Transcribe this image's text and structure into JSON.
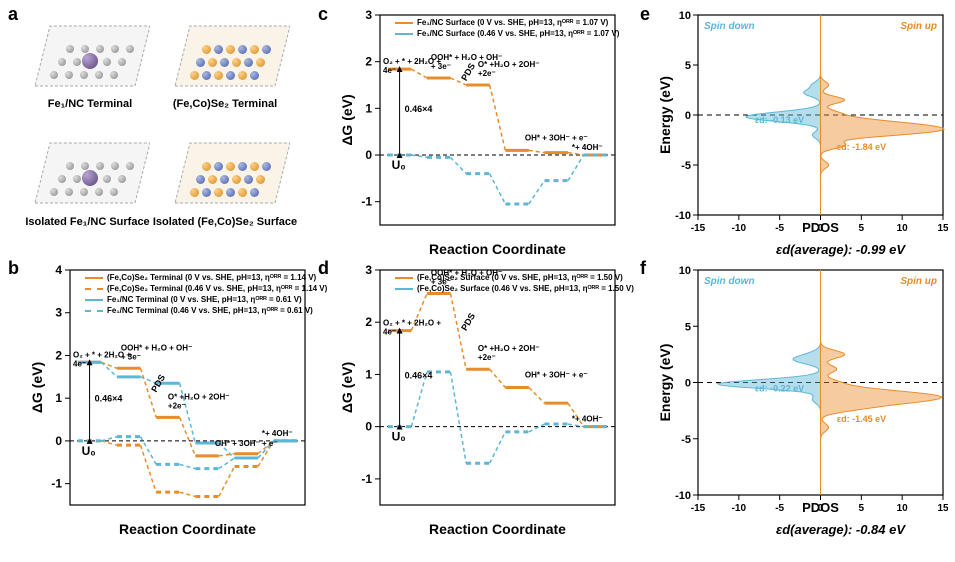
{
  "panel_a": {
    "label": "a",
    "structures": [
      {
        "name": "Fe₁/NC Terminal",
        "label": "Fe₁/NC Terminal"
      },
      {
        "name": "(Fe,Co)Se₂ Terminal",
        "label": "(Fe,Co)Se₂ Terminal"
      },
      {
        "name": "Isolated Fe₁/NC Surface",
        "label": "Isolated Fe₁/NC Surface"
      },
      {
        "name": "Isolated (Fe,Co)Se₂ Surface",
        "label": "Isolated (Fe,Co)Se₂ Surface"
      }
    ]
  },
  "panel_b": {
    "label": "b",
    "type": "free-energy-diagram",
    "x_label": "Reaction Coordinate",
    "y_label": "ΔG (eV)",
    "ylim": [
      -1.5,
      4
    ],
    "yticks": [
      -1,
      0,
      1,
      2,
      3,
      4
    ],
    "legend": [
      {
        "text": "(Fe,Co)Se₂ Terminal (0 V vs. SHE, pH=13, ηᴼᴿᴿ = 1.14 V)",
        "color": "#e88c2a",
        "dash": false
      },
      {
        "text": "(Fe,Co)Se₂ Terminal (0.46 V vs. SHE, pH=13, ηᴼᴿᴿ = 1.14 V)",
        "color": "#e88c2a",
        "dash": true
      },
      {
        "text": "Fe₁/NC Terminal (0 V vs. SHE, pH=13, ηᴼᴿᴿ = 0.61 V)",
        "color": "#5cb6d6",
        "dash": false
      },
      {
        "text": "Fe₁/NC Terminal (0.46 V vs. SHE, pH=13, ηᴼᴿᴿ = 0.61 V)",
        "color": "#5cb6d6",
        "dash": true
      }
    ],
    "series": {
      "orange_solid": {
        "color": "#e88c2a",
        "dash": false,
        "vals": [
          1.84,
          1.7,
          0.55,
          -0.35,
          -0.3,
          0.0
        ]
      },
      "orange_dash": {
        "color": "#e88c2a",
        "dash": true,
        "vals": [
          0.0,
          -0.1,
          -1.2,
          -1.3,
          -0.6,
          0.0
        ]
      },
      "blue_solid": {
        "color": "#5cb6d6",
        "dash": false,
        "vals": [
          1.84,
          1.5,
          1.35,
          -0.05,
          -0.4,
          0.0
        ]
      },
      "blue_dash": {
        "color": "#5cb6d6",
        "dash": true,
        "vals": [
          0.0,
          0.1,
          -0.55,
          -0.65,
          -0.4,
          0.0
        ]
      }
    },
    "step_labels": [
      "O₂ + * + 2H₂O + 4e⁻",
      "OOH* + H₂O + OH⁻ + 3e⁻",
      "O* +H₂O + 2OH⁻ +2e⁻",
      "OH* + 3OH⁻ + e⁻",
      "*+ 4OH⁻"
    ],
    "annotations": {
      "U0": "U₀",
      "arrow": "0.46×4",
      "pds": "PDS"
    }
  },
  "panel_c": {
    "label": "c",
    "type": "free-energy-diagram",
    "x_label": "Reaction Coordinate",
    "y_label": "ΔG (eV)",
    "ylim": [
      -1.5,
      3
    ],
    "yticks": [
      -1,
      0,
      1,
      2,
      3
    ],
    "legend": [
      {
        "text": "Fe₁/NC Surface (0 V vs. SHE, pH=13, ηᴼᴿᴿ = 1.07 V)",
        "color": "#e88c2a",
        "dash": false
      },
      {
        "text": "Fe₁/NC Surface (0.46 V vs. SHE, pH=13, ηᴼᴿᴿ = 1.07 V)",
        "color": "#5cb6d6",
        "dash": false
      }
    ],
    "series": {
      "orange_solid": {
        "color": "#e88c2a",
        "dash": false,
        "vals": [
          1.84,
          1.65,
          1.5,
          0.1,
          0.05,
          0.0
        ]
      },
      "blue_solid": {
        "color": "#5cb6d6",
        "dash": true,
        "vals": [
          0.0,
          -0.05,
          -0.4,
          -1.05,
          -0.55,
          0.0
        ]
      }
    },
    "step_labels": [
      "O₂ + * + 2H₂O + 4e⁻",
      "OOH* + H₂O + OH⁻ + 3e⁻",
      "O* +H₂O + 2OH⁻ +2e⁻",
      "OH* + 3OH⁻ + e⁻",
      "*+ 4OH⁻"
    ],
    "annotations": {
      "U0": "U₀",
      "arrow": "0.46×4",
      "pds": "PDS"
    }
  },
  "panel_d": {
    "label": "d",
    "type": "free-energy-diagram",
    "x_label": "Reaction Coordinate",
    "y_label": "ΔG (eV)",
    "ylim": [
      -1.5,
      3
    ],
    "yticks": [
      -1,
      0,
      1,
      2,
      3
    ],
    "legend": [
      {
        "text": "(Fe,Co)Se₂ Surface (0 V vs. SHE, pH=13, ηᴼᴿᴿ = 1.50 V)",
        "color": "#e88c2a",
        "dash": false
      },
      {
        "text": "(Fe,Co)Se₂ Surface (0.46 V vs. SHE, pH=13, ηᴼᴿᴿ = 1.50 V)",
        "color": "#5cb6d6",
        "dash": false
      }
    ],
    "series": {
      "orange_solid": {
        "color": "#e88c2a",
        "dash": false,
        "vals": [
          1.84,
          2.55,
          1.1,
          0.75,
          0.45,
          0.0
        ]
      },
      "blue_solid": {
        "color": "#5cb6d6",
        "dash": true,
        "vals": [
          0.0,
          1.05,
          -0.7,
          -0.1,
          0.05,
          0.0
        ]
      }
    },
    "step_labels": [
      "O₂ + * + 2H₂O + 4e⁻",
      "OOH* + H₂O + OH⁻ + 3e⁻",
      "O* +H₂O + 2OH⁻ +2e⁻",
      "OH* + 3OH⁻ + e⁻",
      "*+ 4OH⁻"
    ],
    "annotations": {
      "U0": "U₀",
      "arrow": "0.46×4",
      "pds": "PDS"
    }
  },
  "panel_e": {
    "label": "e",
    "type": "pdos",
    "x_label": "PDOS",
    "y_label": "Energy (eV)",
    "ylim": [
      -10,
      10
    ],
    "yticks": [
      -10,
      -5,
      0,
      5,
      10
    ],
    "xlim": [
      -15,
      15
    ],
    "xticks": [
      -15,
      -10,
      -5,
      0,
      5,
      10,
      15
    ],
    "spin_down_label": "Spin down",
    "spin_up_label": "Spin up",
    "epsd_down": "εd: -0.13 eV",
    "epsd_up": "εd: -1.84 eV",
    "caption": "εd(average): -0.99 eV",
    "colors": {
      "down": "#5cb6d6",
      "up": "#e88c2a"
    },
    "peaks_down": [
      [
        -2,
        1
      ],
      [
        -0.5,
        4
      ],
      [
        -0.1,
        6
      ],
      [
        0.3,
        2
      ],
      [
        2.2,
        2
      ],
      [
        3,
        1
      ]
    ],
    "peaks_up": [
      [
        -5,
        1
      ],
      [
        -3,
        3
      ],
      [
        -2,
        6
      ],
      [
        -1.5,
        10
      ],
      [
        -1,
        8
      ],
      [
        -0.5,
        4
      ],
      [
        0.2,
        2
      ],
      [
        1.5,
        3
      ],
      [
        3,
        1
      ]
    ]
  },
  "panel_f": {
    "label": "f",
    "type": "pdos",
    "x_label": "PDOS",
    "y_label": "Energy (eV)",
    "ylim": [
      -10,
      10
    ],
    "yticks": [
      -10,
      -5,
      0,
      5,
      10
    ],
    "xlim": [
      -15,
      15
    ],
    "xticks": [
      -15,
      -10,
      -5,
      0,
      5,
      10,
      15
    ],
    "spin_down_label": "Spin down",
    "spin_up_label": "Spin up",
    "epsd_down": "εd: -0.22 eV",
    "epsd_up": "εd: -1.45 eV",
    "caption": "εd(average): -0.84 eV",
    "colors": {
      "down": "#5cb6d6",
      "up": "#e88c2a"
    },
    "peaks_down": [
      [
        -1.5,
        1
      ],
      [
        -0.3,
        5
      ],
      [
        -0.1,
        7
      ],
      [
        0.2,
        2
      ],
      [
        2,
        3
      ],
      [
        2.5,
        1
      ]
    ],
    "peaks_up": [
      [
        -4,
        1
      ],
      [
        -2.3,
        4
      ],
      [
        -1.7,
        8
      ],
      [
        -1.2,
        10
      ],
      [
        -0.7,
        5
      ],
      [
        0,
        2
      ],
      [
        1.2,
        2
      ],
      [
        2.5,
        3
      ]
    ]
  },
  "colors": {
    "orange": "#e88c2a",
    "blue": "#5cb6d6",
    "black": "#000000",
    "grid": "#000000"
  }
}
